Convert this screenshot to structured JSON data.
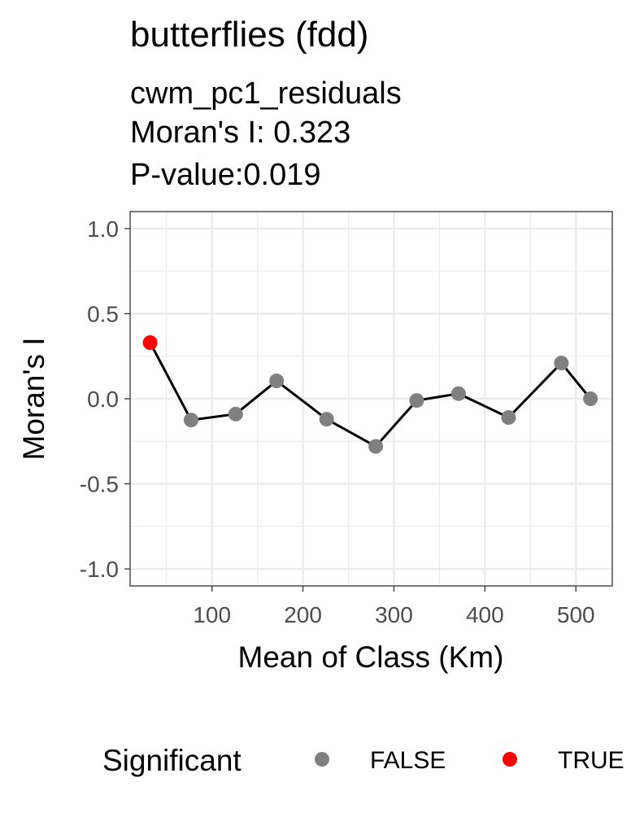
{
  "chart_data": {
    "type": "line",
    "title": "butterflies (fdd)",
    "subtitle": [
      "cwm_pc1_residuals",
      "Moran's I: 0.323",
      "P-value:0.019"
    ],
    "xlabel": "Mean of Class (Km)",
    "ylabel": "Moran's I",
    "xlim": [
      10,
      540
    ],
    "ylim": [
      -1.1,
      1.1
    ],
    "xticks": [
      100,
      200,
      300,
      400,
      500
    ],
    "xtick_labels": [
      "100",
      "200",
      "300",
      "400",
      "500"
    ],
    "yticks": [
      1.0,
      0.5,
      0.0,
      -0.5,
      -1.0
    ],
    "ytick_labels": [
      "1.0",
      "0.5",
      "0.0",
      "-0.5",
      "-1.0"
    ],
    "grid": true,
    "legend_position": "bottom",
    "legend_title": "Significant",
    "legend": [
      {
        "label": "FALSE",
        "color": "#808080"
      },
      {
        "label": "TRUE",
        "color": "#ff0000"
      }
    ],
    "line_color": "#000000",
    "points": [
      {
        "x": 32,
        "y": 0.33,
        "significant": "TRUE"
      },
      {
        "x": 77,
        "y": -0.125,
        "significant": "FALSE"
      },
      {
        "x": 126,
        "y": -0.09,
        "significant": "FALSE"
      },
      {
        "x": 171,
        "y": 0.105,
        "significant": "FALSE"
      },
      {
        "x": 226,
        "y": -0.12,
        "significant": "FALSE"
      },
      {
        "x": 280,
        "y": -0.28,
        "significant": "FALSE"
      },
      {
        "x": 325,
        "y": -0.01,
        "significant": "FALSE"
      },
      {
        "x": 371,
        "y": 0.03,
        "significant": "FALSE"
      },
      {
        "x": 426,
        "y": -0.11,
        "significant": "FALSE"
      },
      {
        "x": 484,
        "y": 0.21,
        "significant": "FALSE"
      },
      {
        "x": 516,
        "y": 0.0,
        "significant": "FALSE"
      }
    ]
  }
}
